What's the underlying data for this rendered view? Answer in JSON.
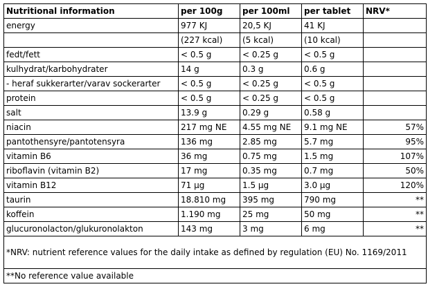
{
  "headers": [
    "Nutritional information",
    "per 100g",
    "per 100ml",
    "per tablet",
    "NRV*"
  ],
  "rows": [
    [
      "energy",
      "977 KJ",
      "20,5 KJ",
      "41 KJ",
      ""
    ],
    [
      "",
      "(227 kcal)",
      "(5 kcal)",
      "(10 kcal)",
      ""
    ],
    [
      "fedt/fett",
      "< 0.5 g",
      "< 0.25 g",
      "< 0.5 g",
      ""
    ],
    [
      "kulhydrat/karbohydrater",
      "14 g",
      "0.3 g",
      "0.6 g",
      ""
    ],
    [
      " - heraf sukkerarter/varav sockerarter",
      "< 0.5 g",
      "< 0.25 g",
      "< 0.5 g",
      ""
    ],
    [
      "protein",
      "< 0.5 g",
      "< 0.25 g",
      "< 0.5 g",
      ""
    ],
    [
      "salt",
      "13.9 g",
      "0.29 g",
      "0.58 g",
      ""
    ],
    [
      "niacin",
      "217 mg NE",
      "4.55 mg NE",
      "9.1 mg NE",
      "57%"
    ],
    [
      "pantothensyre/pantotensyra",
      "136 mg",
      "2.85 mg",
      "5.7 mg",
      "95%"
    ],
    [
      "vitamin B6",
      "36 mg",
      "0.75 mg",
      "1.5 mg",
      "107%"
    ],
    [
      "riboflavin (vitamin B2)",
      "17 mg",
      "0.35 mg",
      "0.7 mg",
      "50%"
    ],
    [
      "vitamin B12",
      "71 µg",
      "1.5 µg",
      "3.0 µg",
      "120%"
    ],
    [
      "taurin",
      "18.810 mg",
      "395 mg",
      "790 mg",
      "**"
    ],
    [
      "koffein",
      "1.190 mg",
      "25 mg",
      "50 mg",
      "**"
    ],
    [
      "glucuronolacton/glukuronolakton",
      "143 mg",
      "3 mg",
      "6 mg",
      "**"
    ]
  ],
  "footnotes": [
    "*NRV: nutrient reference values for the daily intake as defined by regulation (EU) No. 1169/2011",
    "**No reference value available"
  ],
  "colors": {
    "border": "#000000",
    "background": "#ffffff",
    "text": "#000000"
  }
}
